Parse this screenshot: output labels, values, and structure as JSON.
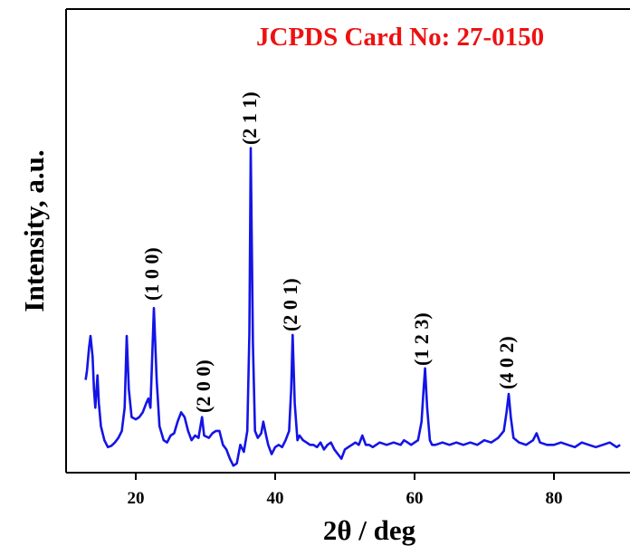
{
  "chart_data": {
    "type": "line",
    "title": "JCPDS Card No: 27-0150",
    "xlabel": "2θ / deg",
    "ylabel": "Intensity, a.u.",
    "color": "#1414e6",
    "title_color": "#ee1111",
    "xlim": [
      10,
      90
    ],
    "ylim": [
      0,
      100
    ],
    "xticks": [
      20,
      40,
      60,
      80
    ],
    "annotations": [
      "(1 0 0)",
      "(2 0 0)",
      "(2 1 1)",
      "(2 0 1)",
      "(1 2 3)",
      "(4 0 2)"
    ],
    "x": [
      12.8,
      13.0,
      13.3,
      13.5,
      13.8,
      14.0,
      14.2,
      14.5,
      14.7,
      15.0,
      15.5,
      16,
      16.5,
      17,
      17.5,
      18,
      18.4,
      18.7,
      19.0,
      19.4,
      20,
      20.5,
      21,
      21.5,
      21.8,
      22.1,
      22.6,
      23.0,
      23.4,
      24,
      24.5,
      25,
      25.5,
      26,
      26.5,
      27,
      27.5,
      28,
      28.5,
      29,
      29.5,
      29.8,
      30.5,
      31,
      31.5,
      32,
      32.5,
      33,
      33.5,
      34,
      34.5,
      35,
      35.5,
      36,
      36.3,
      36.5,
      36.8,
      37.1,
      37.5,
      38,
      38.3,
      38.7,
      39,
      39.5,
      40,
      40.5,
      41,
      41.5,
      42,
      42.3,
      42.5,
      42.8,
      43.2,
      43.5,
      44,
      44.5,
      45,
      45.5,
      46,
      46.5,
      47,
      47.5,
      48,
      48.5,
      49,
      49.5,
      50,
      50.5,
      51,
      51.5,
      52,
      52.5,
      53,
      53.5,
      54,
      55,
      56,
      57,
      58,
      58.5,
      59,
      59.5,
      60,
      60.5,
      61,
      61.3,
      61.5,
      61.8,
      62.2,
      62.5,
      63,
      64,
      65,
      66,
      67,
      68,
      69,
      70,
      71,
      72,
      72.8,
      73.2,
      73.5,
      73.8,
      74.2,
      75,
      76,
      77,
      77.5,
      78,
      79,
      80,
      81,
      82,
      83,
      84,
      85,
      86,
      87,
      88,
      89,
      89.5
    ],
    "values": [
      20,
      22,
      27,
      29.5,
      25,
      18,
      14,
      21,
      15,
      10,
      7,
      5.5,
      5.8,
      6.5,
      7.5,
      9,
      14,
      29.5,
      18,
      12,
      11.5,
      12,
      13,
      15,
      16,
      14,
      35.5,
      20,
      10,
      7,
      6.5,
      8,
      8.5,
      11,
      13,
      12,
      9,
      7,
      8,
      7.5,
      12,
      8,
      7.5,
      8.5,
      9,
      9,
      6,
      5,
      3,
      1.5,
      2,
      6,
      4.5,
      9,
      30,
      70,
      28,
      9,
      7.5,
      8.5,
      11,
      8,
      6,
      4,
      5.5,
      6,
      5.5,
      7,
      9,
      18,
      29.7,
      15,
      7,
      8,
      7,
      6.5,
      6,
      6,
      5.5,
      6.5,
      5,
      6,
      6.5,
      5,
      4,
      3,
      5,
      5.5,
      6,
      6.5,
      6,
      8,
      6,
      6,
      5.5,
      6.5,
      6,
      6.5,
      6,
      7,
      6.5,
      6,
      6.5,
      7,
      11,
      18,
      22.5,
      14,
      7,
      6,
      6,
      6.5,
      6,
      6.5,
      6,
      6.5,
      6,
      7,
      6.5,
      7.5,
      9,
      13,
      17,
      12,
      7.5,
      6.5,
      6,
      7,
      8.5,
      6.5,
      6,
      6,
      6.5,
      6,
      5.5,
      6.5,
      6,
      5.5,
      6,
      6.5,
      5.5,
      6
    ]
  }
}
